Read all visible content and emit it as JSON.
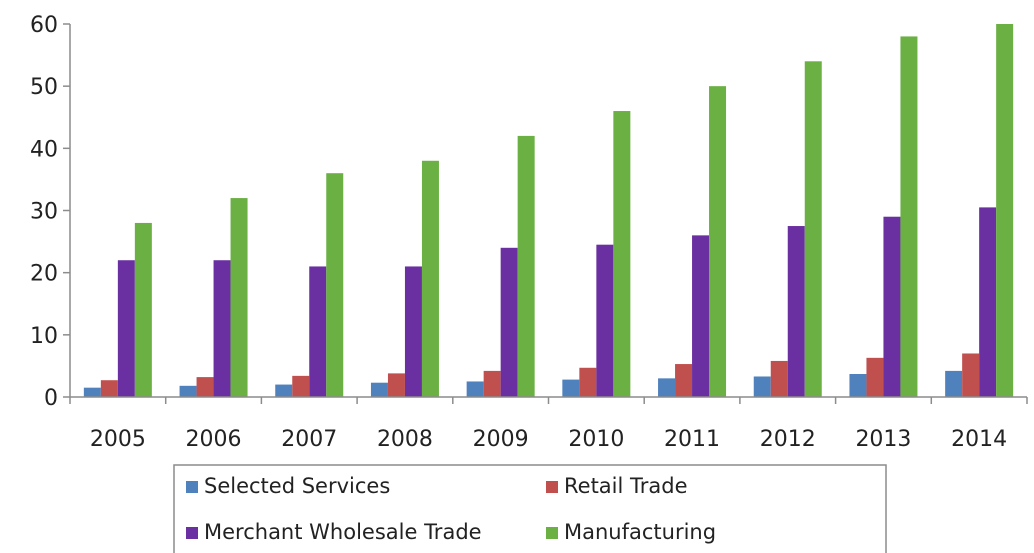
{
  "chart_data": {
    "type": "bar",
    "title": "",
    "xlabel": "",
    "ylabel": "",
    "categories": [
      "2005",
      "2006",
      "2007",
      "2008",
      "2009",
      "2010",
      "2011",
      "2012",
      "2013",
      "2014"
    ],
    "ylim": [
      0,
      60
    ],
    "yticks": [
      "0",
      "10",
      "20",
      "30",
      "40",
      "50",
      "60"
    ],
    "grid": false,
    "legend_position": "bottom",
    "series": [
      {
        "name": "Selected Services",
        "color": "#4f81bd",
        "values": [
          1.5,
          1.8,
          2.0,
          2.3,
          2.5,
          2.8,
          3.0,
          3.3,
          3.7,
          4.2
        ]
      },
      {
        "name": "Retail Trade",
        "color": "#c0504d",
        "values": [
          2.7,
          3.2,
          3.4,
          3.8,
          4.2,
          4.7,
          5.3,
          5.8,
          6.3,
          7.0
        ]
      },
      {
        "name": "Merchant Wholesale Trade",
        "color": "#6a2fa0",
        "values": [
          22,
          22,
          21,
          21,
          24,
          24.5,
          26,
          27.5,
          29,
          30.5
        ]
      },
      {
        "name": "Manufacturing",
        "color": "#6ab043",
        "values": [
          28,
          32,
          36,
          38,
          42,
          46,
          50,
          54,
          58,
          60
        ]
      }
    ]
  }
}
